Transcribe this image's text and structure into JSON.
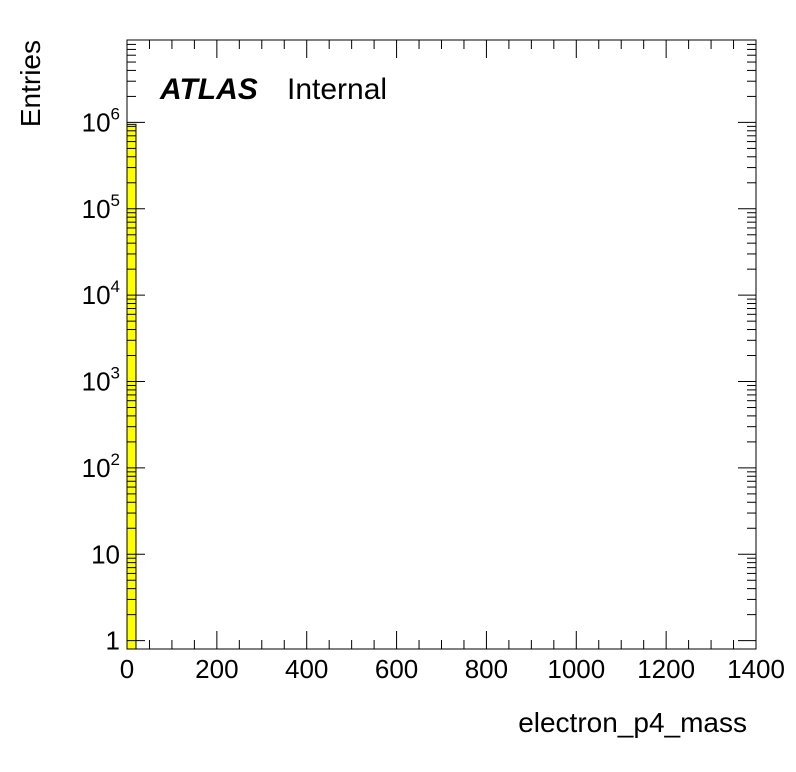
{
  "chart_data": {
    "type": "bar",
    "title": "",
    "xlabel": "electron_p4_mass",
    "ylabel": "Entries",
    "xlim": [
      0,
      1400
    ],
    "ylim": [
      0.8,
      9000000
    ],
    "y_scale": "log",
    "grid": false,
    "x_ticks": [
      0,
      200,
      400,
      600,
      800,
      1000,
      1200,
      1400
    ],
    "y_ticks": [
      {
        "value": 1,
        "base": "1",
        "exp": ""
      },
      {
        "value": 10,
        "base": "10",
        "exp": ""
      },
      {
        "value": 100,
        "base": "10",
        "exp": "2"
      },
      {
        "value": 1000,
        "base": "10",
        "exp": "3"
      },
      {
        "value": 10000,
        "base": "10",
        "exp": "4"
      },
      {
        "value": 100000,
        "base": "10",
        "exp": "5"
      },
      {
        "value": 1000000,
        "base": "10",
        "exp": "6"
      }
    ],
    "bins": [
      {
        "x_low": 0,
        "x_high": 20,
        "value": 950000
      }
    ],
    "fill_color": "#ffff00",
    "line_color": "#000000",
    "label": {
      "brand": "ATLAS",
      "status": "Internal"
    }
  }
}
